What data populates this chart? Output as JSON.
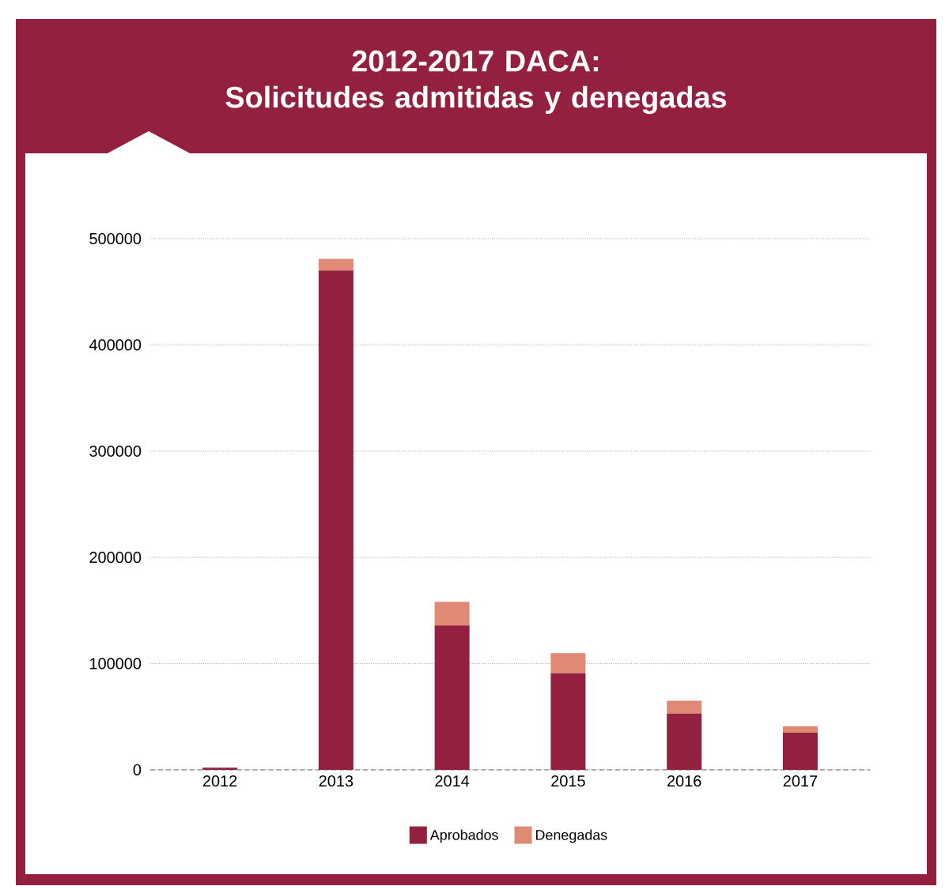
{
  "chart_data": {
    "type": "bar",
    "title": "2012-2017 DACA:\nSolicitudes admitidas y denegadas",
    "categories": [
      "2012",
      "2013",
      "2014",
      "2015",
      "2016",
      "2017"
    ],
    "series": [
      {
        "name": "Aprobados",
        "color": "#93203f",
        "values": [
          2000,
          470000,
          136000,
          91000,
          53000,
          35000
        ]
      },
      {
        "name": "Denegadas",
        "color": "#e08a76",
        "values": [
          0,
          11000,
          22000,
          19000,
          12000,
          6000
        ]
      }
    ],
    "stacked": true,
    "ylim": [
      0,
      500000
    ],
    "yticks": [
      0,
      100000,
      200000,
      300000,
      400000,
      500000
    ],
    "grid": "y",
    "legend": "bottom"
  }
}
